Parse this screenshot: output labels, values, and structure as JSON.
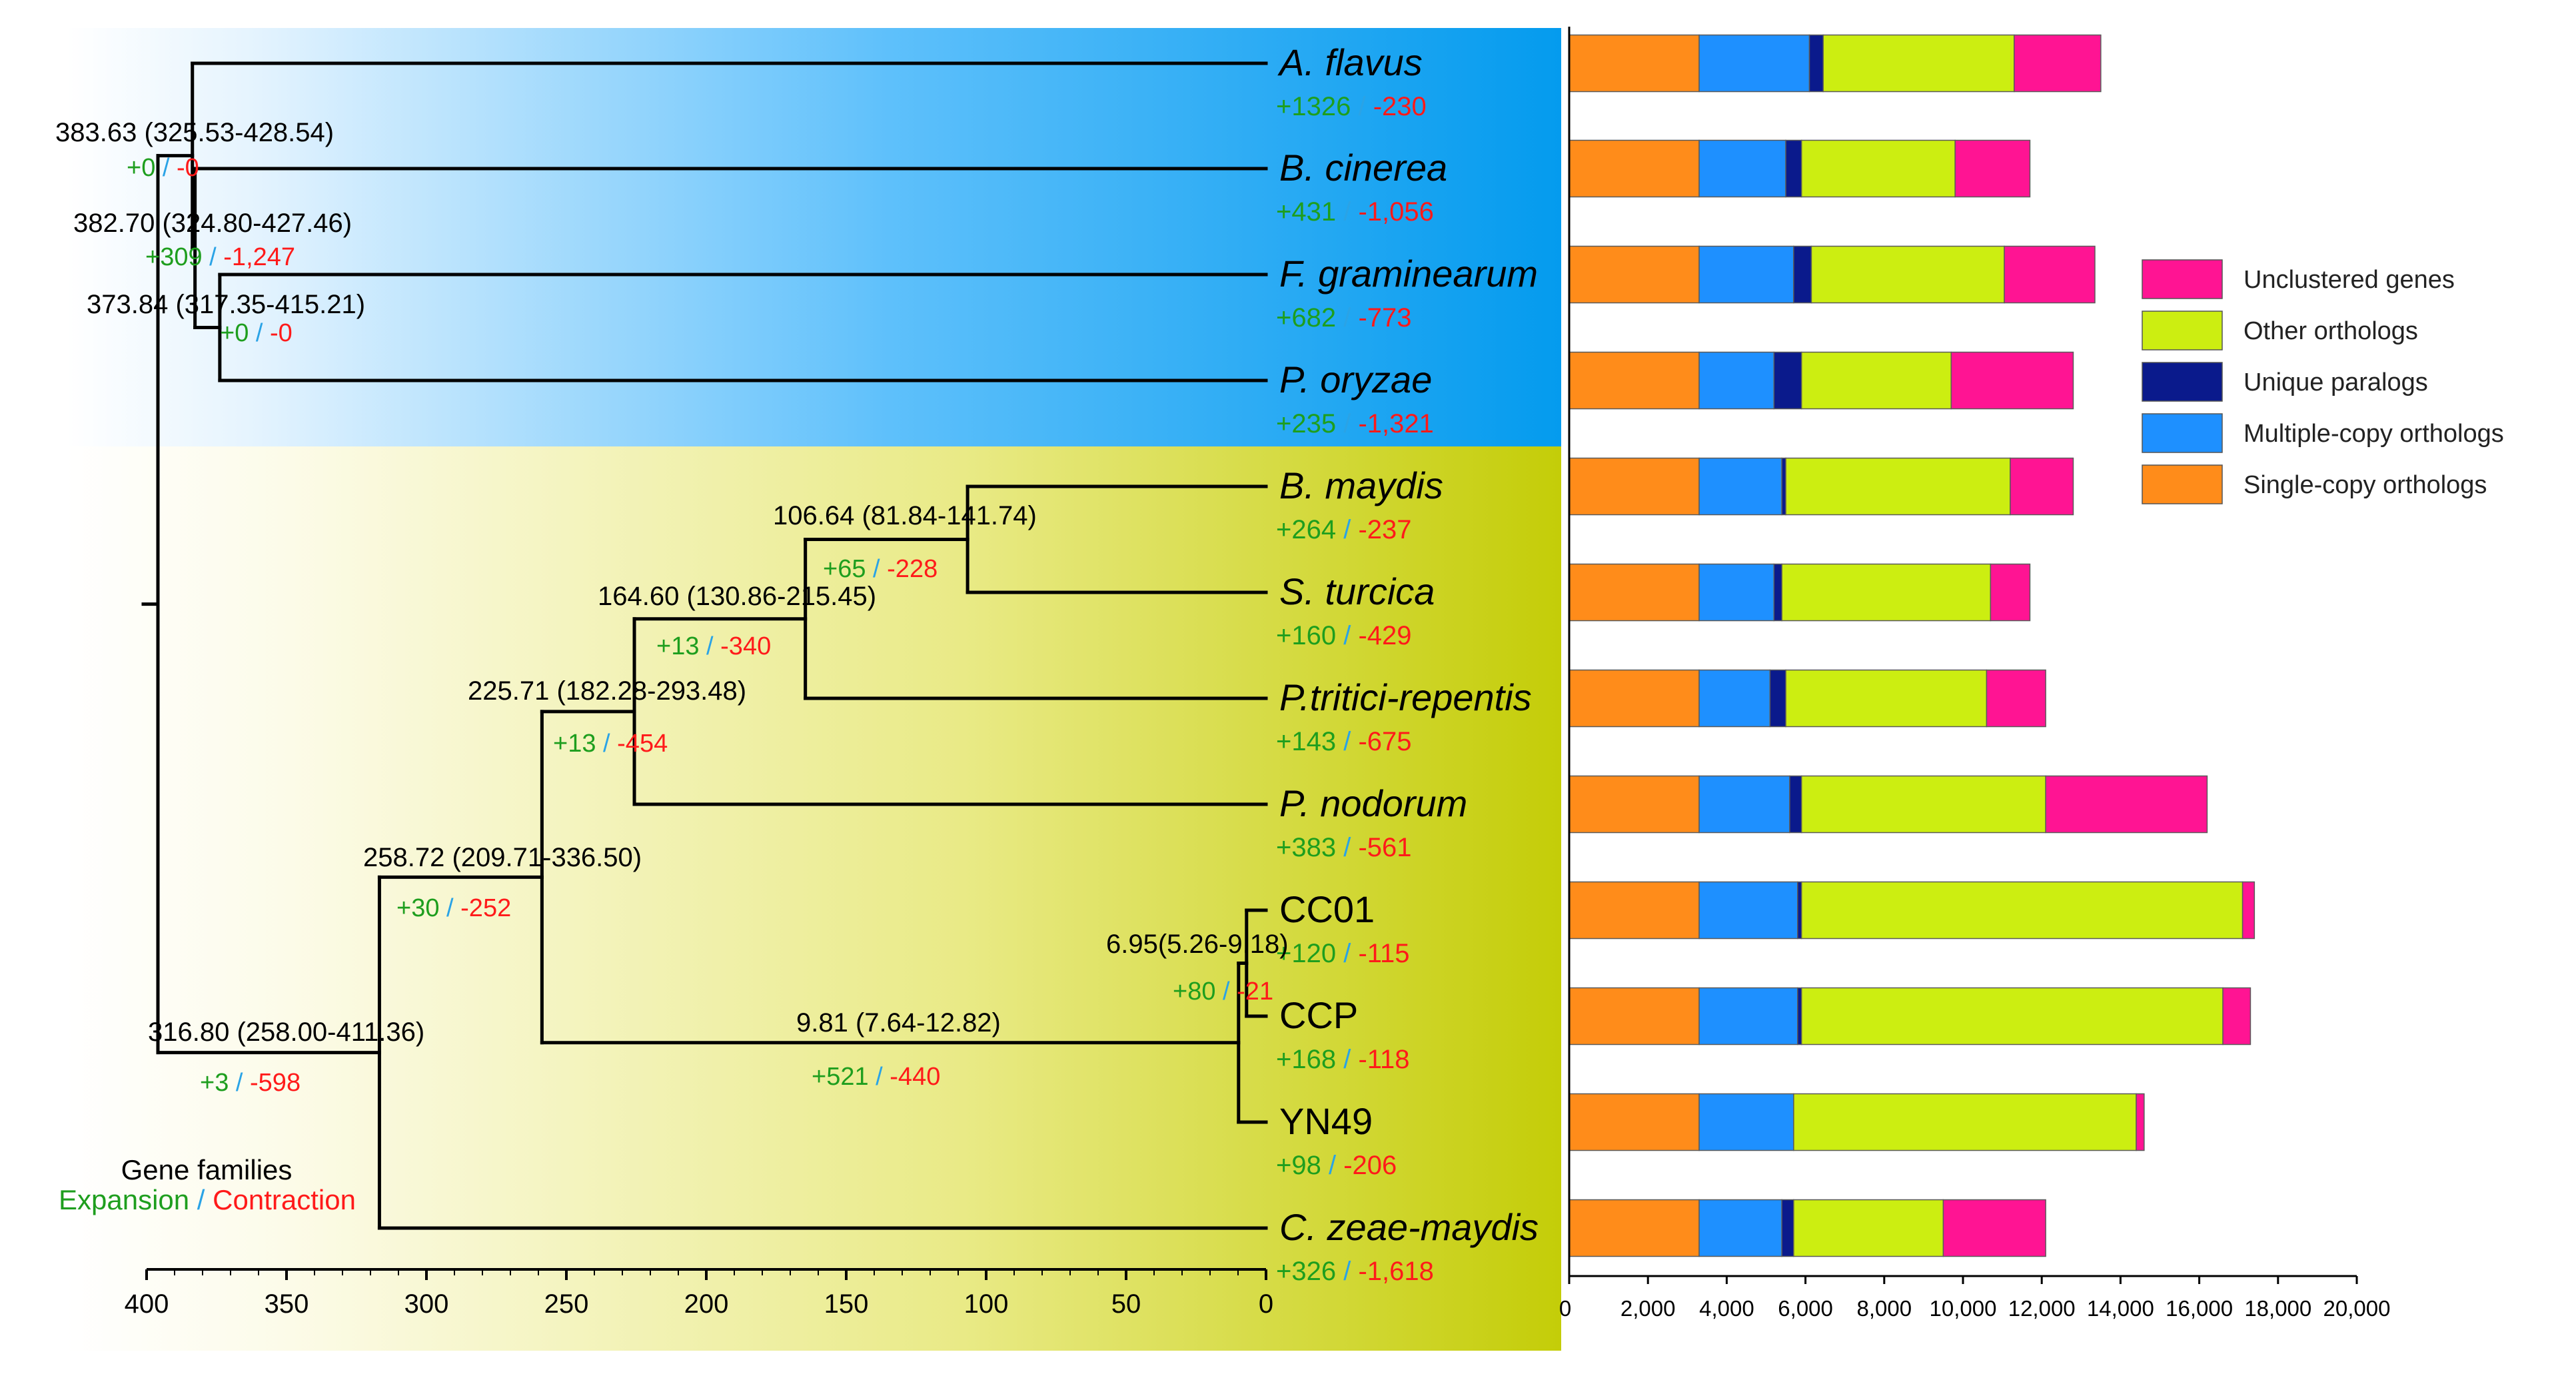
{
  "chart_data": [
    {
      "type": "phylogenetic-tree",
      "x_axis": {
        "min": 0,
        "max": 400,
        "reversed": true,
        "ticks": [
          400,
          350,
          300,
          250,
          200,
          150,
          100,
          50,
          0
        ]
      },
      "taxa": [
        {
          "name": "A. flavus",
          "italic": true,
          "expansion": "+1326",
          "contraction": "-230"
        },
        {
          "name": "B. cinerea",
          "italic": true,
          "expansion": "+431",
          "contraction": "-1,056"
        },
        {
          "name": "F. graminearum",
          "italic": true,
          "expansion": "+682",
          "contraction": "-773"
        },
        {
          "name": "P. oryzae",
          "italic": true,
          "expansion": "+235",
          "contraction": "-1,321"
        },
        {
          "name": "B. maydis",
          "italic": true,
          "expansion": "+264",
          "contraction": "-237"
        },
        {
          "name": "S. turcica",
          "italic": true,
          "expansion": "+160",
          "contraction": "-429"
        },
        {
          "name": "P.tritici-repentis",
          "italic": true,
          "expansion": "+143",
          "contraction": "-675"
        },
        {
          "name": "P. nodorum",
          "italic": true,
          "expansion": "+383",
          "contraction": "-561"
        },
        {
          "name": "CC01",
          "italic": false,
          "expansion": "+120",
          "contraction": "-115"
        },
        {
          "name": "CCP",
          "italic": false,
          "expansion": "+168",
          "contraction": "-118"
        },
        {
          "name": "YN49",
          "italic": false,
          "expansion": "+98",
          "contraction": "-206"
        },
        {
          "name": "C. zeae-maydis",
          "italic": true,
          "expansion": "+326",
          "contraction": "-1,618"
        }
      ],
      "nodes": [
        {
          "id": "n1",
          "age": 383.63,
          "label": "383.63 (325.53-428.54)",
          "expansion": "+0",
          "contraction": "-0"
        },
        {
          "id": "n2",
          "age": 382.7,
          "label": "382.70 (324.80-427.46)",
          "expansion": "+309",
          "contraction": "-1,247"
        },
        {
          "id": "n3",
          "age": 373.84,
          "label": "373.84 (317.35-415.21)",
          "expansion": "+0",
          "contraction": "-0"
        },
        {
          "id": "n4",
          "age": 106.64,
          "label": "106.64 (81.84-141.74)",
          "expansion": "+65",
          "contraction": "-228"
        },
        {
          "id": "n5",
          "age": 164.6,
          "label": "164.60 (130.86-215.45)",
          "expansion": "+13",
          "contraction": "-340"
        },
        {
          "id": "n6",
          "age": 225.71,
          "label": "225.71 (182.28-293.48)",
          "expansion": "+13",
          "contraction": "-454"
        },
        {
          "id": "n7",
          "age": 258.72,
          "label": "258.72 (209.71-336.50)",
          "expansion": "+30",
          "contraction": "-252"
        },
        {
          "id": "n8",
          "age": 6.95,
          "label": "6.95(5.26-9.18)",
          "expansion": "+80",
          "contraction": "-21"
        },
        {
          "id": "n9",
          "age": 9.81,
          "label": "9.81 (7.64-12.82)",
          "expansion": "+521",
          "contraction": "-440"
        },
        {
          "id": "n10",
          "age": 316.8,
          "label": "316.80 (258.00-411.36)",
          "expansion": "+3",
          "contraction": "-598"
        }
      ],
      "legend": {
        "title": "Gene families",
        "expansion": "Expansion",
        "separator": "/",
        "contraction": "Contraction"
      }
    },
    {
      "type": "bar",
      "orientation": "horizontal",
      "stacked": true,
      "categories": [
        "A. flavus",
        "B. cinerea",
        "F. graminearum",
        "P. oryzae",
        "B. maydis",
        "S. turcica",
        "P.tritici-repentis",
        "P. nodorum",
        "CC01",
        "CCP",
        "YN49",
        "C. zeae-maydis"
      ],
      "series": [
        {
          "name": "Single-copy orthologs",
          "color": "#FF8C1A",
          "values": [
            3300,
            3300,
            3300,
            3300,
            3300,
            3300,
            3300,
            3300,
            3300,
            3300,
            3300,
            3300
          ]
        },
        {
          "name": "Multiple-copy orthologs",
          "color": "#1E90FF",
          "values": [
            2800,
            2200,
            2400,
            1900,
            2100,
            1900,
            1800,
            2300,
            2500,
            2500,
            2400,
            2100
          ]
        },
        {
          "name": "Unique paralogs",
          "color": "#0A1A8C",
          "values": [
            350,
            400,
            450,
            700,
            100,
            200,
            400,
            300,
            100,
            100,
            0,
            300
          ]
        },
        {
          "name": "Other orthologs",
          "color": "#CCEE11",
          "values": [
            4850,
            3900,
            4900,
            3800,
            5700,
            5300,
            5100,
            6200,
            11200,
            10700,
            8700,
            3800
          ]
        },
        {
          "name": "Unclustered genes",
          "color": "#FF1493",
          "values": [
            2200,
            1900,
            2300,
            3100,
            1600,
            1000,
            1500,
            4100,
            300,
            700,
            200,
            2600
          ]
        }
      ],
      "x_axis": {
        "min": 0,
        "max": 20000,
        "tick_labels": [
          "0",
          "2,000",
          "4,000",
          "6,000",
          "8,000",
          "10,000",
          "12,000",
          "14,000",
          "16,000",
          "18,000",
          "20,000"
        ]
      },
      "legend_order": [
        "Unclustered genes",
        "Other orthologs",
        "Unique paralogs",
        "Multiple-copy orthologs",
        "Single-copy orthologs"
      ],
      "legend_position": "right"
    }
  ]
}
